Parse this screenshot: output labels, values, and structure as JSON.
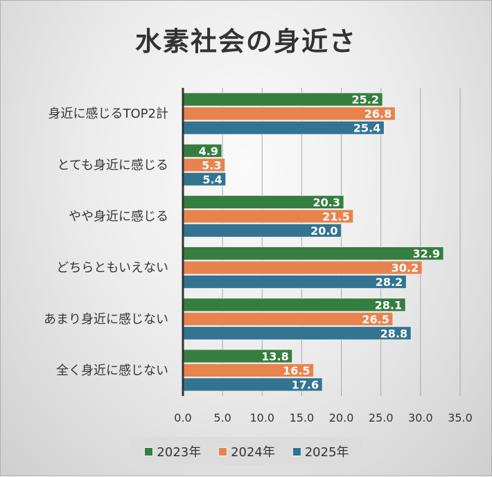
{
  "chart_data": {
    "type": "bar",
    "orientation": "horizontal",
    "title": "水素社会の身近さ",
    "categories": [
      "身近に感じるTOP2計",
      "とても身近に感じる",
      "やや身近に感じる",
      "どちらともいえない",
      "あまり身近に感じない",
      "全く身近に感じない"
    ],
    "series": [
      {
        "name": "2023年",
        "color": "#367e3f",
        "values": [
          25.2,
          4.9,
          20.3,
          32.9,
          28.1,
          13.8
        ]
      },
      {
        "name": "2024年",
        "color": "#e8834e",
        "values": [
          26.8,
          5.3,
          21.5,
          30.2,
          26.5,
          16.5
        ]
      },
      {
        "name": "2025年",
        "color": "#327491",
        "values": [
          25.4,
          5.4,
          20.0,
          28.2,
          28.8,
          17.6
        ]
      }
    ],
    "xlim": [
      0,
      35
    ],
    "xticks": [
      "0.0",
      "5.0",
      "10.0",
      "15.0",
      "20.0",
      "25.0",
      "30.0",
      "35.0"
    ],
    "grid": true,
    "legend": "bottom"
  }
}
